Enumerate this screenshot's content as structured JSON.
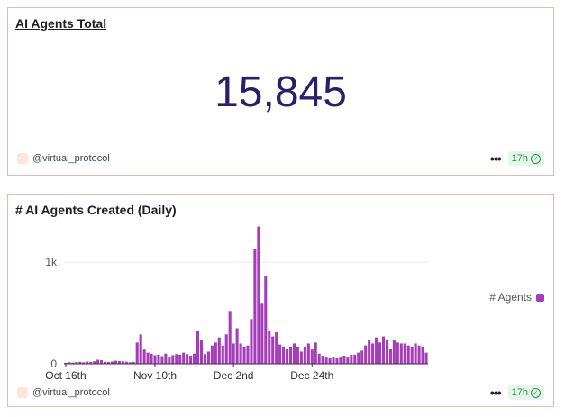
{
  "card_total": {
    "title": "AI Agents Total",
    "value": "15,845",
    "author": "@virtual_protocol",
    "more": "•••",
    "freshness": "17h"
  },
  "card_daily": {
    "title": "# AI Agents Created (Daily)",
    "author": "@virtual_protocol",
    "more": "•••",
    "freshness": "17h"
  },
  "chart_data": {
    "type": "bar",
    "series": [
      {
        "name": "# Agents",
        "color": "#a63db8",
        "values": [
          10,
          15,
          12,
          18,
          20,
          15,
          22,
          18,
          25,
          40,
          35,
          20,
          18,
          22,
          30,
          28,
          25,
          20,
          15,
          18,
          210,
          290,
          140,
          110,
          100,
          85,
          90,
          75,
          100,
          70,
          85,
          95,
          90,
          110,
          95,
          80,
          100,
          320,
          230,
          95,
          120,
          180,
          210,
          260,
          180,
          290,
          520,
          200,
          350,
          200,
          170,
          180,
          440,
          1130,
          1350,
          600,
          860,
          330,
          270,
          310,
          190,
          170,
          150,
          170,
          200,
          170,
          120,
          170,
          200,
          140,
          210,
          100,
          80,
          70,
          60,
          70,
          60,
          70,
          80,
          70,
          90,
          90,
          110,
          130,
          180,
          230,
          200,
          260,
          210,
          270,
          240,
          150,
          230,
          210,
          200,
          200,
          180,
          170,
          200,
          180,
          170,
          110
        ]
      }
    ],
    "x_tick_labels": [
      "Oct 16th",
      "Nov 10th",
      "Dec 2nd",
      "Dec 24th"
    ],
    "x_tick_index": [
      0,
      25,
      47,
      69
    ],
    "y_tick_labels": [
      "0",
      "1k"
    ],
    "y_tick_values": [
      0,
      1000
    ],
    "ylim": [
      0,
      1400
    ],
    "legend_position": "right",
    "grid": true
  }
}
